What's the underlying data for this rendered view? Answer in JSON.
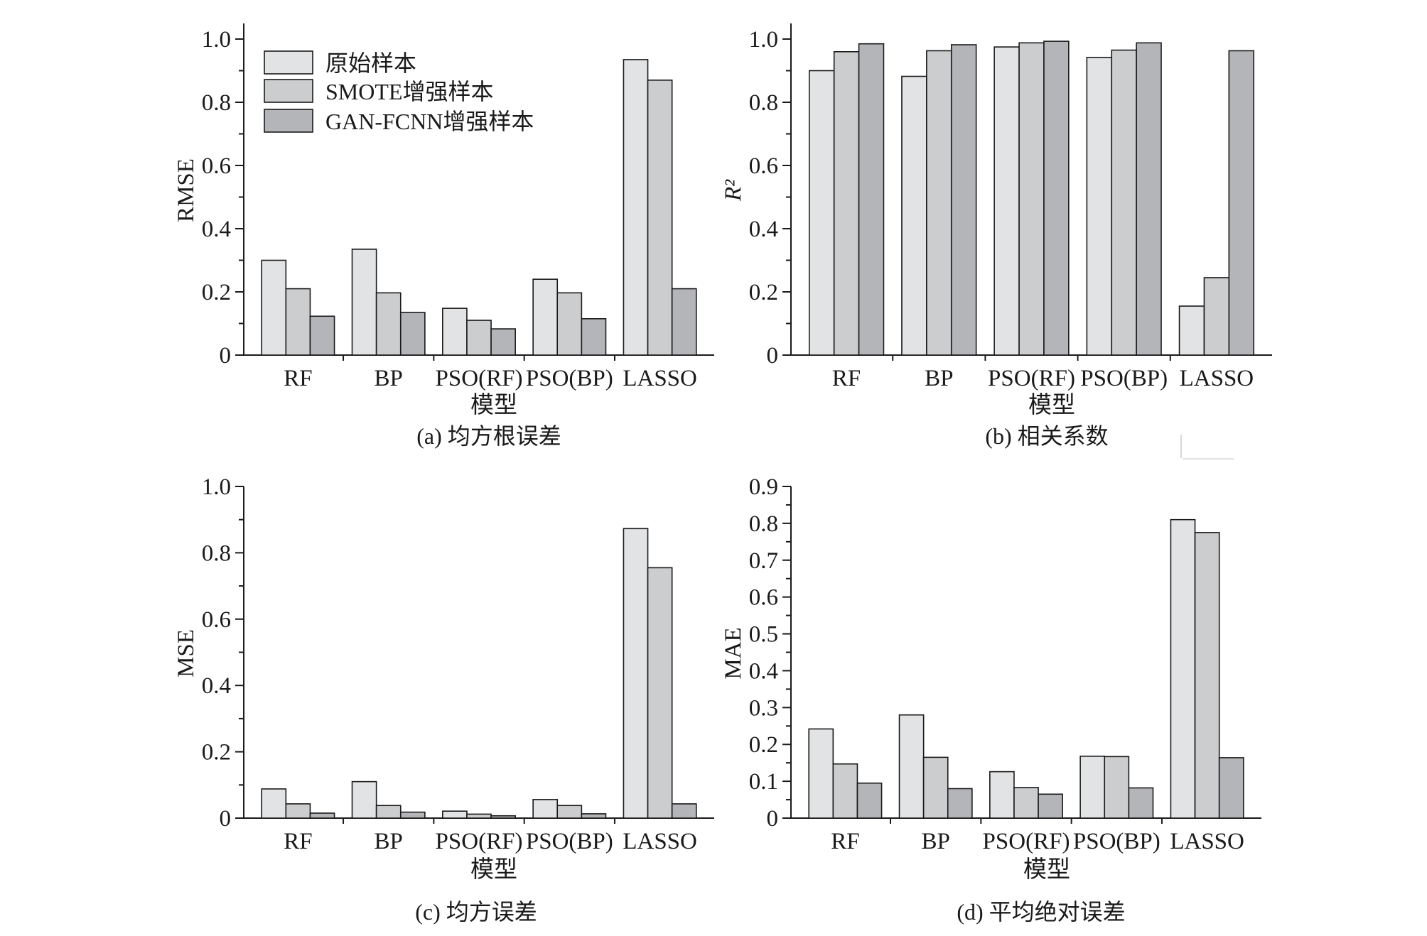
{
  "figure": {
    "legend": [
      {
        "name": "原始样本",
        "color": "#e2e3e5"
      },
      {
        "name": "SMOTE增强样本",
        "color": "#cccdcf"
      },
      {
        "name": "GAN-FCNN增强样本",
        "color": "#b4b5b8"
      }
    ]
  },
  "chart_data": [
    {
      "type": "bar",
      "caption": "(a) 均方根误差",
      "categories": [
        "RF",
        "BP",
        "PSO(RF)",
        "PSO(BP)",
        "LASSO"
      ],
      "xlabel": "模型",
      "ylabel": "RMSE",
      "ylim": [
        0,
        1.1
      ],
      "yticks": [
        "0",
        "0.2",
        "0.4",
        "0.6",
        "0.8",
        "1.0"
      ],
      "legend": "top-left",
      "grid": false,
      "series": [
        {
          "name": "原始样本",
          "values": [
            0.3,
            0.335,
            0.148,
            0.24,
            0.935
          ]
        },
        {
          "name": "SMOTE增强样本",
          "values": [
            0.21,
            0.197,
            0.11,
            0.197,
            0.87
          ]
        },
        {
          "name": "GAN-FCNN增强样本",
          "values": [
            0.123,
            0.135,
            0.083,
            0.115,
            0.21
          ]
        }
      ]
    },
    {
      "type": "bar",
      "caption": "(b) 相关系数",
      "categories": [
        "RF",
        "BP",
        "PSO(RF)",
        "PSO(BP)",
        "LASSO"
      ],
      "xlabel": "模型",
      "ylabel": "R²",
      "ylim": [
        0,
        1.1
      ],
      "yticks": [
        "0",
        "0.2",
        "0.4",
        "0.6",
        "0.8",
        "1.0"
      ],
      "grid": false,
      "series": [
        {
          "name": "原始样本",
          "values": [
            0.9,
            0.882,
            0.975,
            0.942,
            0.155
          ]
        },
        {
          "name": "SMOTE增强样本",
          "values": [
            0.96,
            0.963,
            0.988,
            0.965,
            0.245
          ]
        },
        {
          "name": "GAN-FCNN增强样本",
          "values": [
            0.985,
            0.982,
            0.993,
            0.988,
            0.963
          ]
        }
      ]
    },
    {
      "type": "bar",
      "caption": "(c) 均方误差",
      "categories": [
        "RF",
        "BP",
        "PSO(RF)",
        "PSO(BP)",
        "LASSO"
      ],
      "xlabel": "模型",
      "ylabel": "MSE",
      "ylim": [
        0,
        1.0
      ],
      "yticks": [
        "0",
        "0.2",
        "0.4",
        "0.6",
        "0.8",
        "1.0"
      ],
      "grid": false,
      "series": [
        {
          "name": "原始样本",
          "values": [
            0.088,
            0.11,
            0.021,
            0.056,
            0.873
          ]
        },
        {
          "name": "SMOTE增强样本",
          "values": [
            0.043,
            0.038,
            0.012,
            0.038,
            0.755
          ]
        },
        {
          "name": "GAN-FCNN增强样本",
          "values": [
            0.015,
            0.018,
            0.007,
            0.013,
            0.043
          ]
        }
      ]
    },
    {
      "type": "bar",
      "caption": "(d) 平均绝对误差",
      "categories": [
        "RF",
        "BP",
        "PSO(RF)",
        "PSO(BP)",
        "LASSO"
      ],
      "xlabel": "模型",
      "ylabel": "MAE",
      "ylim": [
        0,
        0.9
      ],
      "yticks": [
        "0",
        "0.1",
        "0.2",
        "0.3",
        "0.4",
        "0.5",
        "0.6",
        "0.7",
        "0.8",
        "0.9"
      ],
      "grid": false,
      "series": [
        {
          "name": "原始样本",
          "values": [
            0.242,
            0.28,
            0.126,
            0.168,
            0.81
          ]
        },
        {
          "name": "SMOTE增强样本",
          "values": [
            0.147,
            0.165,
            0.083,
            0.167,
            0.775
          ]
        },
        {
          "name": "GAN-FCNN增强样本",
          "values": [
            0.095,
            0.08,
            0.065,
            0.082,
            0.164
          ]
        }
      ]
    }
  ]
}
